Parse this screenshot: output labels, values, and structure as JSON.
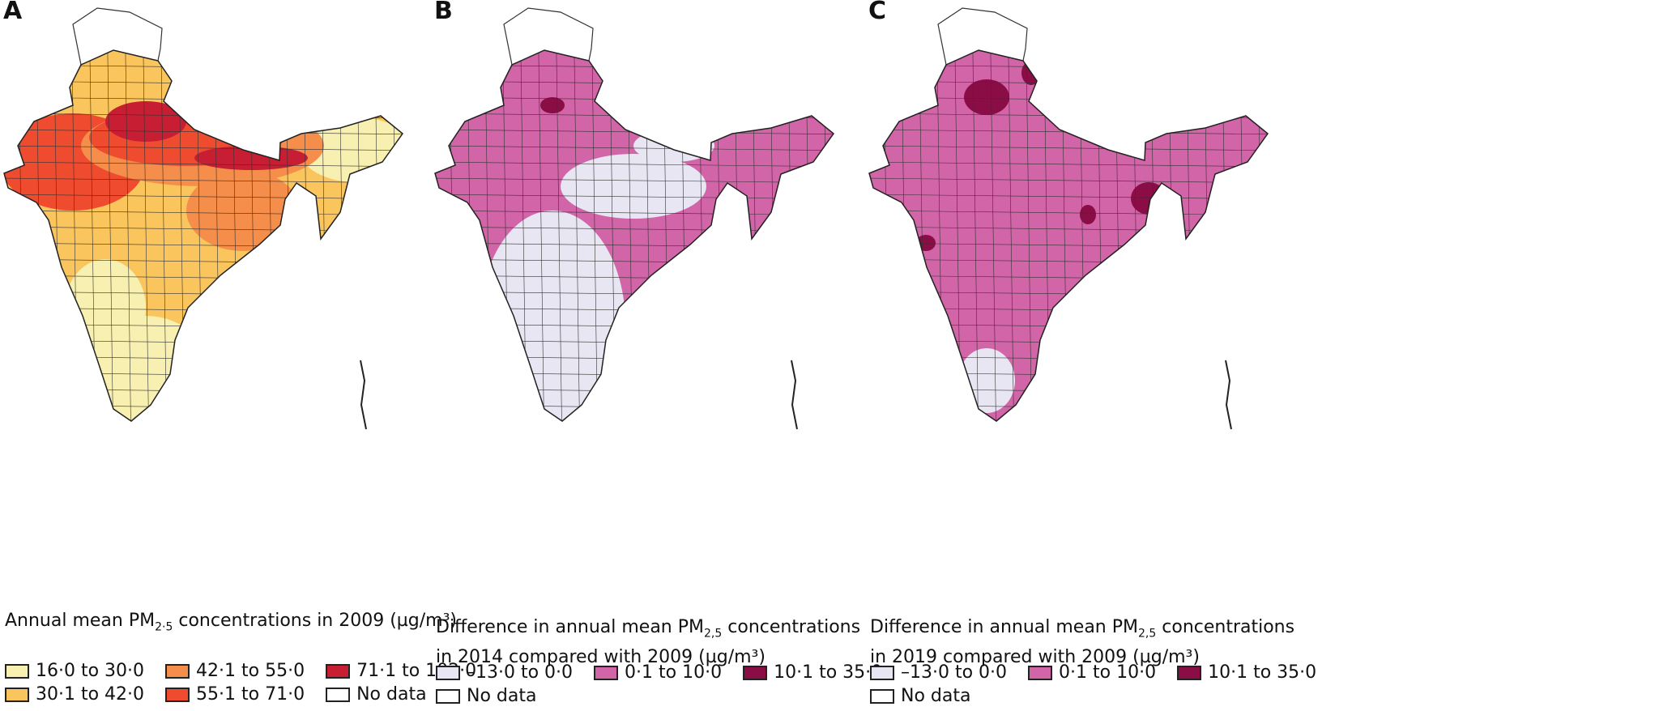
{
  "panels": [
    {
      "letter": "A",
      "title": "Annual mean PM2·5 concentrations in 2009 (µg/m³)",
      "title_parts": [
        "Annual mean PM",
        "2·5",
        " concentrations in 2009 (µg/m³)"
      ],
      "legend": [
        {
          "label": "16·0 to 30·0",
          "color": "#f8f0b0"
        },
        {
          "label": "42·1 to 55·0",
          "color": "#f58e4a"
        },
        {
          "label": "71·1 to 102·0",
          "color": "#c81e33"
        },
        {
          "label": "30·1 to 42·0",
          "color": "#fbc55e"
        },
        {
          "label": "55·1 to 71·0",
          "color": "#ef4b2e"
        },
        {
          "label": "No data",
          "color": "#ffffff"
        }
      ]
    },
    {
      "letter": "B",
      "title_line1_parts": [
        "Difference in annual mean PM",
        "2,5",
        " concentrations"
      ],
      "title_line2": "in 2014 compared with 2009 (µg/m³)",
      "legend": [
        {
          "label": "–13·0 to 0·0",
          "color": "#e8e6f2"
        },
        {
          "label": "0·1 to 10·0",
          "color": "#d264a8"
        },
        {
          "label": "10·1 to 35·0",
          "color": "#8a0d45"
        },
        {
          "label": "No data",
          "color": "#ffffff"
        }
      ]
    },
    {
      "letter": "C",
      "title_line1_parts": [
        "Difference in annual mean PM",
        "2,5",
        " concentrations"
      ],
      "title_line2": "in 2019 compared with 2009 (µg/m³)",
      "legend": [
        {
          "label": "–13·0 to 0·0",
          "color": "#e8e6f2"
        },
        {
          "label": "0·1 to 10·0",
          "color": "#d264a8"
        },
        {
          "label": "10·1 to 35·0",
          "color": "#8a0d45"
        },
        {
          "label": "No data",
          "color": "#ffffff"
        }
      ]
    }
  ]
}
